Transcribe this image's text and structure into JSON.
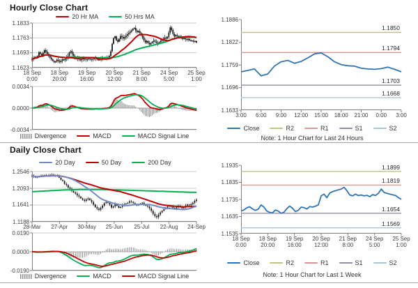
{
  "chart_data": [
    {
      "id": "hourly-price",
      "type": "candles",
      "title": "Hourly Close Chart",
      "ylim": [
        1.1623,
        1.1833
      ],
      "yticks": [
        "1.1833",
        "1.1763",
        "1.1693",
        "1.1623"
      ],
      "xticks": [
        [
          "18 Sep",
          "0:00"
        ],
        [
          "18 Sep",
          "20:00"
        ],
        [
          "19 Sep",
          "16:00"
        ],
        [
          "20 Sep",
          "12:00"
        ],
        [
          "21 Sep",
          "8:00"
        ],
        [
          "24 Sep",
          "5:00"
        ],
        [
          "25 Sep",
          "1:00"
        ]
      ],
      "grid": true,
      "wick": 0.0011,
      "candle_color": "#1a1a1a",
      "legend": [
        {
          "label": "20 Hr MA",
          "color": "#c00000"
        },
        {
          "label": "50 Hrs MA",
          "color": "#00b050"
        }
      ],
      "ma": [
        {
          "window": 20,
          "color": "#c00000"
        },
        {
          "window": 50,
          "color": "#00b050"
        }
      ],
      "close": [
        1.1662,
        1.1668,
        1.1673,
        1.167,
        1.1678,
        1.1695,
        1.1688,
        1.168,
        1.1692,
        1.1705,
        1.1698,
        1.1688,
        1.1678,
        1.167,
        1.1662,
        1.1655,
        1.1648,
        1.1652,
        1.166,
        1.1655,
        1.165,
        1.1655,
        1.1662,
        1.1658,
        1.1665,
        1.167,
        1.1678,
        1.1695,
        1.17,
        1.1688,
        1.1678,
        1.167,
        1.1665,
        1.1668,
        1.1662,
        1.1658,
        1.1662,
        1.1666,
        1.1663,
        1.166,
        1.1662,
        1.1665,
        1.1662,
        1.166,
        1.1663,
        1.1665,
        1.1668,
        1.1662,
        1.1658,
        1.1662,
        1.1665,
        1.1668,
        1.1666,
        1.167,
        1.1668,
        1.1672,
        1.1678,
        1.17,
        1.1735,
        1.1762,
        1.177,
        1.1752,
        1.1745,
        1.1758,
        1.1772,
        1.1768,
        1.176,
        1.1766,
        1.1773,
        1.178,
        1.1786,
        1.1792,
        1.1798,
        1.1806,
        1.181,
        1.1798,
        1.179,
        1.1795,
        1.1786,
        1.1775,
        1.1765,
        1.1752,
        1.1742,
        1.1748,
        1.1738,
        1.1732,
        1.1738,
        1.1745,
        1.175,
        1.1746,
        1.174,
        1.1736,
        1.1742,
        1.1748,
        1.1753,
        1.1758,
        1.1764,
        1.176,
        1.1768,
        1.1788,
        1.1812,
        1.18,
        1.1782,
        1.177,
        1.1776,
        1.1772,
        1.1766,
        1.177,
        1.1763,
        1.1758,
        1.1762,
        1.1757,
        1.1754,
        1.1758,
        1.1752,
        1.1748,
        1.175,
        1.1745,
        1.1748,
        1.1741
      ]
    },
    {
      "id": "hourly-macd",
      "type": "macd",
      "source": 0,
      "ylim": [
        -0.0034,
        0.0034
      ],
      "yticks": [
        "0.0034",
        "0.0000",
        "-0.0034"
      ],
      "grid": true,
      "scale": 0.75,
      "div_scale": 1.8,
      "macd_color": "#c00000",
      "signal_color": "#00b050",
      "bar_color": "#8c8c8c",
      "legend": [
        {
          "label": "Divergence",
          "color": "#8c8c8c",
          "swatch": "bars"
        },
        {
          "label": "MACD",
          "color": "#c00000"
        },
        {
          "label": "MACD Signal Line",
          "color": "#00b050"
        }
      ]
    },
    {
      "id": "pivot-24h",
      "type": "line",
      "note": "Note: 1 Hour Chart for Last 24 Hours",
      "ylim": [
        1.1633,
        1.1886
      ],
      "yticks": [
        "1.1886",
        "1.1822",
        "1.1759",
        "1.1696",
        "1.1633"
      ],
      "xticks": [
        "3:00",
        "6:00",
        "9:00",
        "12:00",
        "15:00",
        "18:00",
        "21:00",
        "0:00",
        "3:00"
      ],
      "grid": false,
      "close_color": "#2f74b2",
      "pivots": [
        {
          "name": "R2",
          "label": "1.1850",
          "value": 1.185,
          "color": "#c2c287"
        },
        {
          "name": "R1",
          "label": "1.1794",
          "value": 1.1794,
          "color": "#d99694"
        },
        {
          "name": "S1",
          "label": "1.1703",
          "value": 1.1703,
          "color": "#958aa8"
        },
        {
          "name": "S2",
          "label": "1.1668",
          "value": 1.1668,
          "color": "#a5c8d8"
        }
      ],
      "legend": [
        {
          "label": "Close",
          "color": "#2f74b2"
        },
        {
          "label": "R2",
          "color": "#c2c287"
        },
        {
          "label": "R1",
          "color": "#d99694"
        },
        {
          "label": "S1",
          "color": "#958aa8"
        },
        {
          "label": "S2",
          "color": "#a5c8d8"
        }
      ],
      "close": [
        1.174,
        1.1744,
        1.1748,
        1.1729,
        1.1734,
        1.1756,
        1.1768,
        1.1772,
        1.1764,
        1.1769,
        1.1779,
        1.179,
        1.1793,
        1.1782,
        1.1768,
        1.176,
        1.1757,
        1.1756,
        1.175,
        1.1748,
        1.1747,
        1.1749,
        1.1753,
        1.1747,
        1.174
      ]
    },
    {
      "id": "daily-price",
      "type": "candles",
      "title": "Daily Close Chart",
      "ylim": [
        1.1188,
        1.2546
      ],
      "yticks": [
        "1.2546",
        "1.2093",
        "1.1641",
        "1.1188"
      ],
      "xticks": [
        "28-Mar",
        "27-Apr",
        "30-May",
        "25-Jun",
        "25-Jul",
        "22-Aug",
        "24-Sep"
      ],
      "grid": true,
      "wick": 0.0045,
      "candle_color": "#1a1a1a",
      "legend": [
        {
          "label": "20 Day",
          "color": "#7189c4"
        },
        {
          "label": "50 Day",
          "color": "#c00000"
        },
        {
          "label": "200 Day",
          "color": "#00b050"
        }
      ],
      "ma": [
        {
          "window": 20,
          "color": "#7189c4"
        },
        {
          "window": 50,
          "color": "#c00000"
        }
      ],
      "ma200": [
        1.2,
        1.2022,
        1.2042,
        1.2056,
        1.2062,
        1.206,
        1.2052,
        1.2042,
        1.203,
        1.2018,
        1.2005,
        1.1992,
        1.1982
      ],
      "ma200_color": "#00b050",
      "close": [
        1.243,
        1.2412,
        1.2385,
        1.2402,
        1.2422,
        1.2438,
        1.2432,
        1.2448,
        1.2444,
        1.244,
        1.2455,
        1.246,
        1.2442,
        1.243,
        1.2445,
        1.2382,
        1.2322,
        1.229,
        1.2212,
        1.218,
        1.2112,
        1.208,
        1.2022,
        1.198,
        1.1952,
        1.19,
        1.187,
        1.1822,
        1.1782,
        1.1752,
        1.1792,
        1.182,
        1.1772,
        1.1722,
        1.1652,
        1.1582,
        1.1542,
        1.151,
        1.1562,
        1.1622,
        1.169,
        1.1722,
        1.1702,
        1.1652,
        1.1572,
        1.1602,
        1.1662,
        1.1622,
        1.1562,
        1.1592,
        1.1642,
        1.1662,
        1.1682,
        1.1702,
        1.1742,
        1.1722,
        1.1692,
        1.1662,
        1.1632,
        1.1652,
        1.1682,
        1.1702,
        1.1652,
        1.1622,
        1.1602,
        1.1552,
        1.1482,
        1.1402,
        1.1342,
        1.131,
        1.1382,
        1.1442,
        1.1482,
        1.1532,
        1.1572,
        1.1602,
        1.1622,
        1.1592,
        1.1562,
        1.1542,
        1.1582,
        1.1622,
        1.1592,
        1.1552,
        1.1582,
        1.1622,
        1.1652,
        1.1632,
        1.1662,
        1.1702,
        1.1752,
        1.1782
      ]
    },
    {
      "id": "daily-macd",
      "type": "macd",
      "source": 3,
      "ylim": [
        -0.019,
        0.019
      ],
      "yticks": [
        "0.0190",
        "0.0000",
        "-0.0190"
      ],
      "grid": true,
      "scale": 0.85,
      "div_scale": 1.6,
      "macd_color": "#00b050",
      "signal_color": "#c00000",
      "bar_color": "#8c8c8c",
      "legend": [
        {
          "label": "Divergence",
          "color": "#8c8c8c",
          "swatch": "bars"
        },
        {
          "label": "MACD",
          "color": "#00b050"
        },
        {
          "label": "MACD Signal Line",
          "color": "#c00000"
        }
      ]
    },
    {
      "id": "pivot-week",
      "type": "line",
      "note": "Note: 1 Hour Chart for Last 1 Week",
      "ylim": [
        1.1535,
        1.1935
      ],
      "yticks": [
        "1.1935",
        "1.1835",
        "1.1735",
        "1.1635",
        "1.1535"
      ],
      "xticks": [
        [
          "18 Sep",
          "0:00"
        ],
        [
          "18 Sep",
          "20:00"
        ],
        [
          "19 Sep",
          "16:00"
        ],
        [
          "20 Sep",
          "12:00"
        ],
        [
          "21 Sep",
          "8:00"
        ],
        [
          "24 Sep",
          "5:00"
        ],
        [
          "25 Sep",
          "1:00"
        ]
      ],
      "grid": false,
      "close_color": "#2f74b2",
      "pivots": [
        {
          "name": "R2",
          "label": "1.1899",
          "value": 1.1899,
          "color": "#c2c287"
        },
        {
          "name": "R1",
          "label": "1.1819",
          "value": 1.1819,
          "color": "#d99694"
        },
        {
          "name": "S1",
          "label": "1.1654",
          "value": 1.1654,
          "color": "#958aa8"
        },
        {
          "name": "S2",
          "label": "1.1569",
          "value": 1.1569,
          "color": "#a5c8d8"
        }
      ],
      "legend": [
        {
          "label": "Close",
          "color": "#2f74b2"
        },
        {
          "label": "R2",
          "color": "#c2c287"
        },
        {
          "label": "R1",
          "color": "#d99694"
        },
        {
          "label": "S1",
          "color": "#958aa8"
        },
        {
          "label": "S2",
          "color": "#a5c8d8"
        }
      ],
      "close": [
        1.1668,
        1.1673,
        1.1686,
        1.1692,
        1.168,
        1.1671,
        1.1678,
        1.1703,
        1.169,
        1.1667,
        1.1659,
        1.1657,
        1.1673,
        1.1667,
        1.1654,
        1.166,
        1.1681,
        1.1696,
        1.1684,
        1.1664,
        1.1671,
        1.169,
        1.1687,
        1.1679,
        1.1693,
        1.169,
        1.1696,
        1.1703,
        1.1756,
        1.1766,
        1.1745,
        1.1772,
        1.1781,
        1.1786,
        1.1791,
        1.1796,
        1.1806,
        1.1786,
        1.1761,
        1.1756,
        1.1766,
        1.1758,
        1.1761,
        1.1756,
        1.1759,
        1.1751,
        1.1763,
        1.1758,
        1.1771,
        1.1796,
        1.1776,
        1.1771,
        1.1766,
        1.1762,
        1.1758,
        1.1745,
        1.1736
      ]
    }
  ]
}
